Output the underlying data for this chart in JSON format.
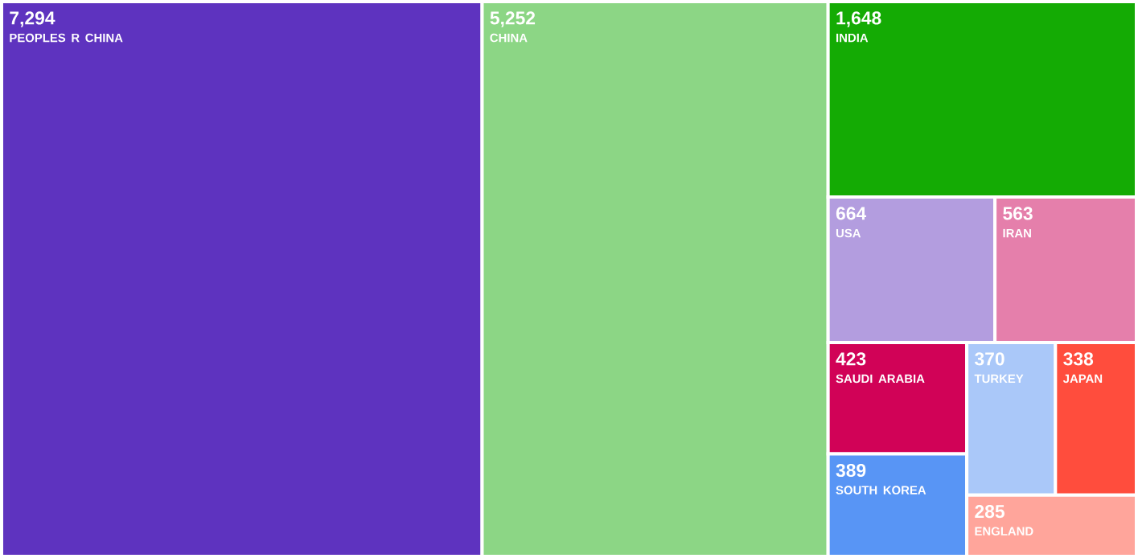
{
  "chart_data": {
    "type": "other",
    "categories": [
      "PEOPLES R CHINA",
      "CHINA",
      "INDIA",
      "USA",
      "IRAN",
      "SAUDI ARABIA",
      "SOUTH KOREA",
      "TURKEY",
      "JAPAN",
      "ENGLAND"
    ],
    "values": [
      7294,
      5252,
      1648,
      664,
      563,
      423,
      389,
      370,
      338,
      285
    ],
    "value_labels": [
      "7,294",
      "5,252",
      "1,648",
      "664",
      "563",
      "423",
      "389",
      "370",
      "338",
      "285"
    ],
    "colors": [
      "#5e33bf",
      "#8cd685",
      "#14ab04",
      "#b39ddf",
      "#e57fab",
      "#d10257",
      "#5895f5",
      "#aac8f9",
      "#ff4d3d",
      "#ffa59b"
    ]
  }
}
